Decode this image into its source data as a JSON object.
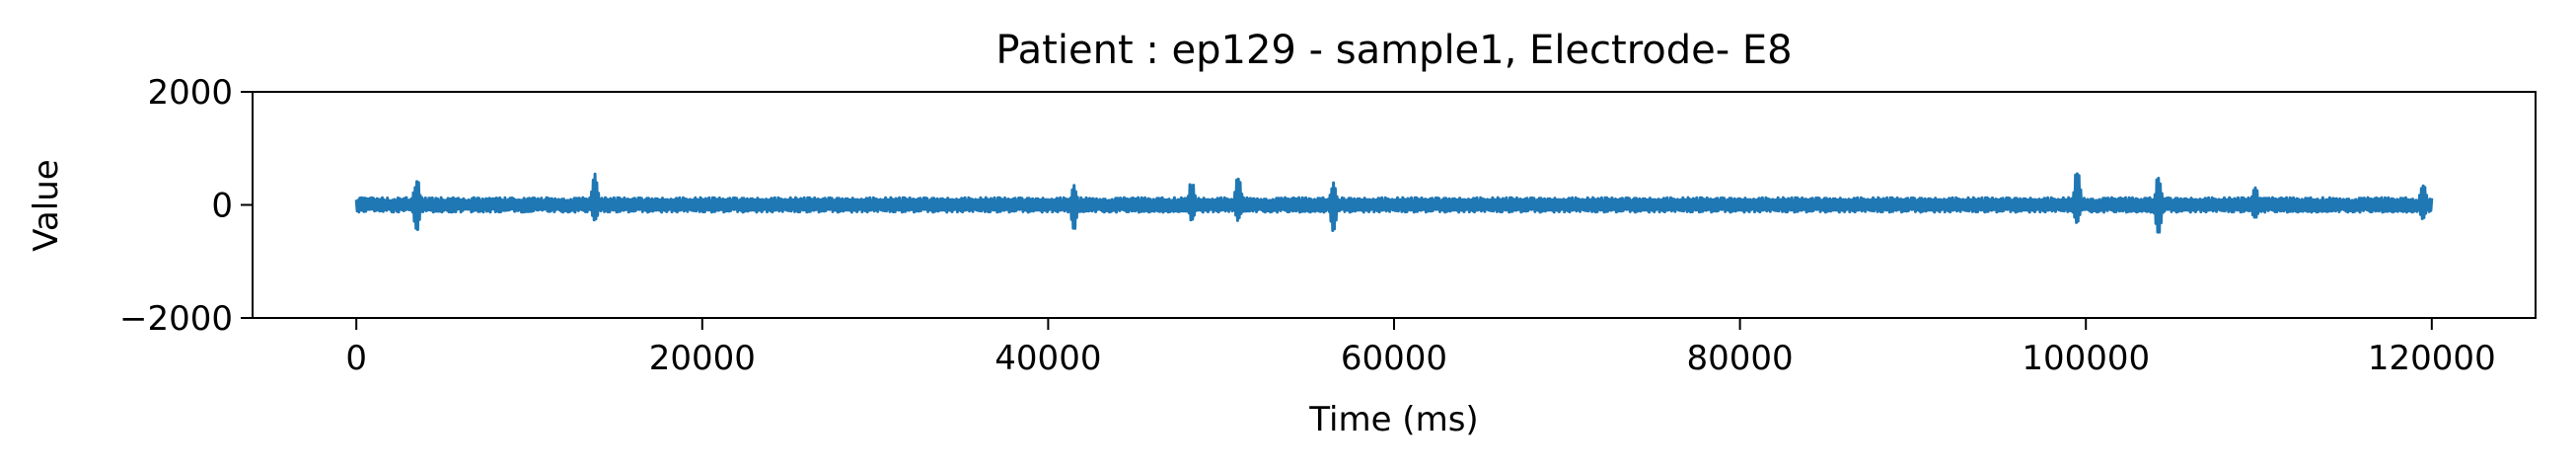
{
  "chart_data": {
    "type": "line",
    "title": "Patient : ep129 - sample1, Electrode- E8",
    "xlabel": "Time (ms)",
    "ylabel": "Value",
    "xlim": [
      -6000,
      126000
    ],
    "ylim": [
      -2000,
      2000
    ],
    "xticks": [
      0,
      20000,
      40000,
      60000,
      80000,
      100000,
      120000
    ],
    "xtick_labels": [
      "0",
      "20000",
      "40000",
      "60000",
      "80000",
      "100000",
      "120000"
    ],
    "yticks": [
      -2000,
      0,
      2000
    ],
    "ytick_labels": [
      "−2000",
      "0",
      "2000"
    ],
    "grid": false,
    "legend": "none",
    "color": "#1f77b4",
    "x_range": [
      0,
      120000
    ],
    "baseline_amplitude": 130,
    "series_envelope_peaks": [
      {
        "x": 3500,
        "max": 500,
        "min": -500
      },
      {
        "x": 13800,
        "max": 550,
        "min": -300
      },
      {
        "x": 41500,
        "max": 350,
        "min": -450
      },
      {
        "x": 48300,
        "max": 450,
        "min": -300
      },
      {
        "x": 51000,
        "max": 550,
        "min": -300
      },
      {
        "x": 56500,
        "max": 400,
        "min": -500
      },
      {
        "x": 99500,
        "max": 650,
        "min": -350
      },
      {
        "x": 104200,
        "max": 550,
        "min": -550
      },
      {
        "x": 109800,
        "max": 350,
        "min": -300
      },
      {
        "x": 119500,
        "max": 400,
        "min": -300
      }
    ]
  }
}
